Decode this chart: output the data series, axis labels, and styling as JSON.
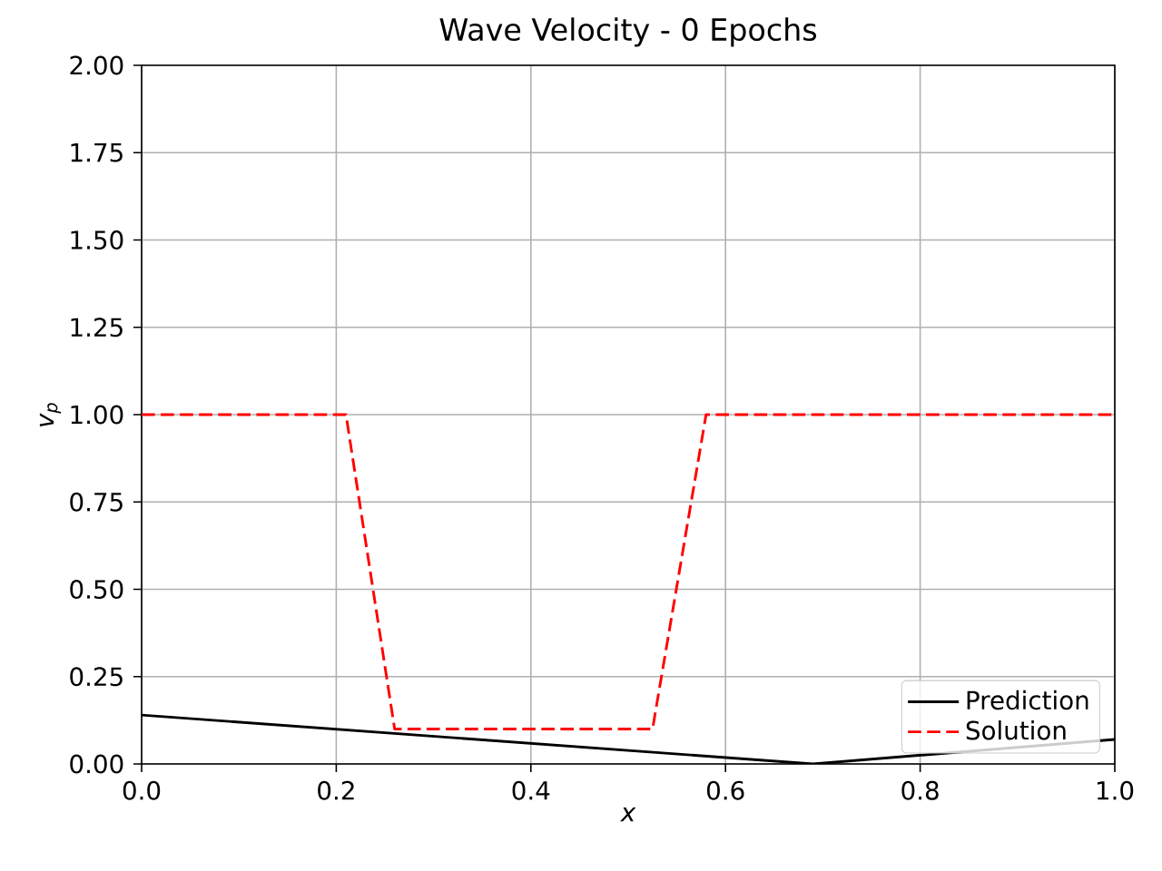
{
  "chart_data": {
    "type": "line",
    "title": "Wave Velocity - 0 Epochs",
    "xlabel": "x",
    "ylabel": "v$_{p}$",
    "xlim": [
      0,
      1
    ],
    "ylim": [
      0,
      2
    ],
    "xticks": [
      {
        "value": 0,
        "label": "0.0"
      },
      {
        "value": 0.2,
        "label": "0.2"
      },
      {
        "value": 0.4,
        "label": "0.4"
      },
      {
        "value": 0.6,
        "label": "0.6"
      },
      {
        "value": 0.8,
        "label": "0.8"
      },
      {
        "value": 1,
        "label": "1.0"
      }
    ],
    "yticks": [
      {
        "value": 0,
        "label": "0.00"
      },
      {
        "value": 0.25,
        "label": "0.25"
      },
      {
        "value": 0.5,
        "label": "0.50"
      },
      {
        "value": 0.75,
        "label": "0.75"
      },
      {
        "value": 1,
        "label": "1.00"
      },
      {
        "value": 1.25,
        "label": "1.25"
      },
      {
        "value": 1.5,
        "label": "1.50"
      },
      {
        "value": 1.75,
        "label": "1.75"
      },
      {
        "value": 2,
        "label": "2.00"
      }
    ],
    "grid": true,
    "legend": "bottom right",
    "series": [
      {
        "name": "Prediction",
        "color": "#000000",
        "line_style": "solid",
        "x": [
          0,
          0.69,
          1
        ],
        "values": [
          0.14,
          0.0,
          0.07
        ]
      },
      {
        "name": "Solution",
        "color": "#ff0000",
        "line_style": "dashed",
        "x": [
          0,
          0.21,
          0.26,
          0.525,
          0.58,
          1
        ],
        "values": [
          1,
          1,
          0.1,
          0.1,
          1,
          1
        ]
      }
    ]
  }
}
